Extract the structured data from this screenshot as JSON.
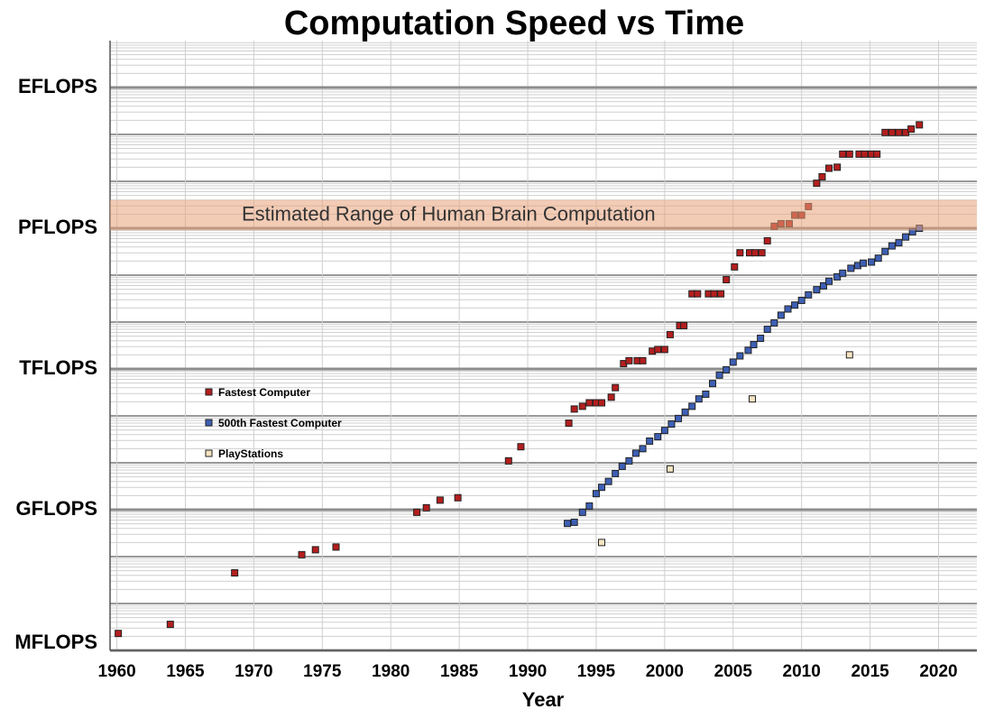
{
  "chart_data": {
    "type": "scatter",
    "title": "Computation Speed vs Time",
    "xlabel": "Year",
    "xlim": [
      1959.5,
      2022.8
    ],
    "xticks": [
      1960,
      1965,
      1970,
      1975,
      1980,
      1985,
      1990,
      1995,
      2000,
      2005,
      2010,
      2015,
      2020
    ],
    "ylim": [
      1000000.0,
      1e+19
    ],
    "yscale": "log",
    "yticks": [
      {
        "value": 1000000.0,
        "label": "MFLOPS"
      },
      {
        "value": 1000000000.0,
        "label": "GFLOPS"
      },
      {
        "value": 1000000000000.0,
        "label": "TFLOPS"
      },
      {
        "value": 1000000000000000.0,
        "label": "PFLOPS"
      },
      {
        "value": 1e+18,
        "label": "EFLOPS"
      }
    ],
    "grid": true,
    "minor_grid": true,
    "legend": "center left",
    "band": {
      "label": "Estimated Range of Human Brain Computation",
      "range": [
        900000000000000.0,
        4000000000000000.0
      ],
      "color": "#e9a27a"
    },
    "series": [
      {
        "name": "Fastest Computer",
        "color": "#b41e1e",
        "x": [
          1960.1,
          1963.9,
          1968.6,
          1973.5,
          1974.5,
          1976.0,
          1981.9,
          1982.6,
          1983.6,
          1984.9,
          1988.6,
          1989.5,
          1993.0,
          1993.4,
          1994.0,
          1994.5,
          1995.0,
          1995.4,
          1996.1,
          1996.4,
          1997.0,
          1997.4,
          1998.0,
          1998.4,
          1999.1,
          1999.5,
          2000.0,
          2000.4,
          2001.1,
          2001.4,
          2002.0,
          2002.4,
          2003.2,
          2003.6,
          2004.1,
          2004.5,
          2005.1,
          2005.5,
          2006.2,
          2006.6,
          2007.1,
          2007.5,
          2008.0,
          2008.5,
          2009.1,
          2009.5,
          2010.0,
          2010.5,
          2011.1,
          2011.5,
          2012.0,
          2012.6,
          2013.0,
          2013.5,
          2014.2,
          2014.6,
          2015.1,
          2015.5,
          2016.1,
          2016.6,
          2017.1,
          2017.6,
          2018.0,
          2018.6
        ],
        "values": [
          2300000.0,
          3600000.0,
          45000000.0,
          110000000.0,
          140000000.0,
          160000000.0,
          880000000.0,
          1100000000.0,
          1600000000.0,
          1800000000.0,
          11000000000.0,
          22000000000.0,
          70000000000.0,
          140000000000.0,
          160000000000.0,
          190000000000.0,
          190000000000.0,
          190000000000.0,
          250000000000.0,
          400000000000.0,
          1300000000000.0,
          1500000000000.0,
          1500000000000.0,
          1500000000000.0,
          2400000000000.0,
          2600000000000.0,
          2600000000000.0,
          5400000000000.0,
          8400000000000.0,
          8400000000000.0,
          40000000000000.0,
          40000000000000.0,
          40000000000000.0,
          40000000000000.0,
          40000000000000.0,
          80000000000000.0,
          150000000000000.0,
          300000000000000.0,
          300000000000000.0,
          300000000000000.0,
          300000000000000.0,
          540000000000000.0,
          1100000000000000.0,
          1250000000000000.0,
          1250000000000000.0,
          1900000000000000.0,
          1900000000000000.0,
          2900000000000000.0,
          9100000000000000.0,
          1.25e+16,
          1.9e+16,
          2e+16,
          3.8e+16,
          3.8e+16,
          3.8e+16,
          3.8e+16,
          3.8e+16,
          3.8e+16,
          1.1e+17,
          1.1e+17,
          1.1e+17,
          1.1e+17,
          1.3e+17,
          1.6e+17
        ]
      },
      {
        "name": "500th Fastest Computer",
        "color": "#3d5fb4",
        "x": [
          1992.9,
          1993.4,
          1994.0,
          1994.5,
          1995.0,
          1995.4,
          1995.9,
          1996.4,
          1996.9,
          1997.4,
          1997.9,
          1998.4,
          1998.9,
          1999.5,
          2000.0,
          2000.5,
          2001.0,
          2001.5,
          2002.0,
          2002.5,
          2003.0,
          2003.5,
          2004.0,
          2004.5,
          2005.0,
          2005.5,
          2006.1,
          2006.5,
          2007.0,
          2007.5,
          2008.0,
          2008.5,
          2009.0,
          2009.5,
          2010.0,
          2010.5,
          2011.1,
          2011.6,
          2012.0,
          2012.6,
          2013.0,
          2013.6,
          2014.1,
          2014.5,
          2015.1,
          2015.6,
          2016.1,
          2016.6,
          2017.1,
          2017.6,
          2018.1,
          2018.6
        ],
        "values": [
          510000000.0,
          540000000.0,
          880000000.0,
          1200000000.0,
          2200000000.0,
          3000000000.0,
          4000000000.0,
          5900000000.0,
          8400000000.0,
          11000000000.0,
          16000000000.0,
          20000000000.0,
          29000000000.0,
          36000000000.0,
          49000000000.0,
          67000000000.0,
          88000000000.0,
          120000000000.0,
          160000000000.0,
          230000000000.0,
          290000000000.0,
          490000000000.0,
          740000000000.0,
          960000000000.0,
          1400000000000.0,
          1900000000000.0,
          2500000000000.0,
          3300000000000.0,
          4500000000000.0,
          7000000000000.0,
          9600000000000.0,
          14000000000000.0,
          19000000000000.0,
          23000000000000.0,
          29000000000000.0,
          38000000000000.0,
          49000000000000.0,
          59000000000000.0,
          74000000000000.0,
          92000000000000.0,
          110000000000000.0,
          140000000000000.0,
          160000000000000.0,
          180000000000000.0,
          190000000000000.0,
          230000000000000.0,
          320000000000000.0,
          420000000000000.0,
          490000000000000.0,
          650000000000000.0,
          840000000000000.0,
          1000000000000000.0
        ]
      },
      {
        "name": "PlayStations",
        "color": "#f6e4c2",
        "x": [
          1995.4,
          2000.4,
          2006.4,
          2013.5
        ],
        "values": [
          200000000.0,
          7400000000.0,
          230000000000.0,
          2000000000000.0
        ]
      }
    ]
  }
}
